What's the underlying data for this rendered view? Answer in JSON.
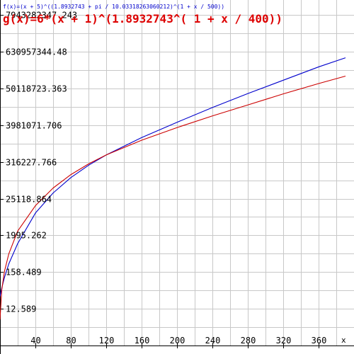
{
  "colors": {
    "background": "#ffffff",
    "grid": "#c8c8c8",
    "axis": "#000000",
    "f_series": "#0000cc",
    "g_series": "#cc0000",
    "f_title": "#0000cc",
    "g_title": "#dd0000",
    "tick_label": "#000000"
  },
  "chart_data": {
    "type": "line",
    "title_f": "f(x)=(x + 5)^((1.8932743 + pi / 10.03318263060212)^(1 + x / 500))",
    "title_g": "g(x)=6*(x + 1)^(1.8932743^( 1 + x / 400))",
    "xlabel": "x",
    "ylabel": "",
    "y_scale": "log",
    "grid": true,
    "xlim": [
      0,
      390
    ],
    "ylim_log10": [
      0,
      10.35
    ],
    "x_ticks": [
      40,
      80,
      120,
      160,
      200,
      240,
      280,
      320,
      360
    ],
    "x_tick_labels": [
      "40",
      "80",
      "120",
      "160",
      "200",
      "240",
      "280",
      "320",
      "360"
    ],
    "y_ticks": [
      12.589,
      158.489,
      1995.262,
      25118.864,
      316227.766,
      3981071.706,
      50118723.363,
      630957344.48,
      7943282347.243
    ],
    "y_tick_labels": [
      "12.589",
      "158.489",
      "1995.262",
      "25118.864",
      "316227.766",
      "3981071.706",
      "50118723.363",
      "630957344.48",
      "7943282347.243"
    ],
    "series": [
      {
        "name": "f(x)=(x + 5)^((1.8932743 + pi / 10.03318263060212)^(1 + x / 500))",
        "x": [
          0,
          2,
          5,
          10,
          20,
          40,
          60,
          80,
          100,
          120,
          160,
          200,
          240,
          280,
          320,
          360,
          390
        ],
        "y": [
          29.6,
          53.1,
          109,
          281,
          1130,
          9333,
          37218,
          107152,
          251189,
          512861,
          1698244,
          4897788,
          13489629,
          35481339,
          89125094,
          223872114,
          416869383
        ]
      },
      {
        "name": "g(x)=6*(x + 1)^(1.8932743^( 1 + x / 400))",
        "x": [
          0,
          2,
          5,
          10,
          20,
          40,
          60,
          80,
          100,
          120,
          160,
          200,
          240,
          280,
          320,
          360,
          390
        ],
        "y": [
          6,
          47,
          166,
          563,
          2692,
          15488,
          52481,
          131826,
          275423,
          512861,
          1412538,
          3388442,
          7585776,
          16218101,
          34673685,
          70794578,
          117489756
        ]
      }
    ]
  }
}
